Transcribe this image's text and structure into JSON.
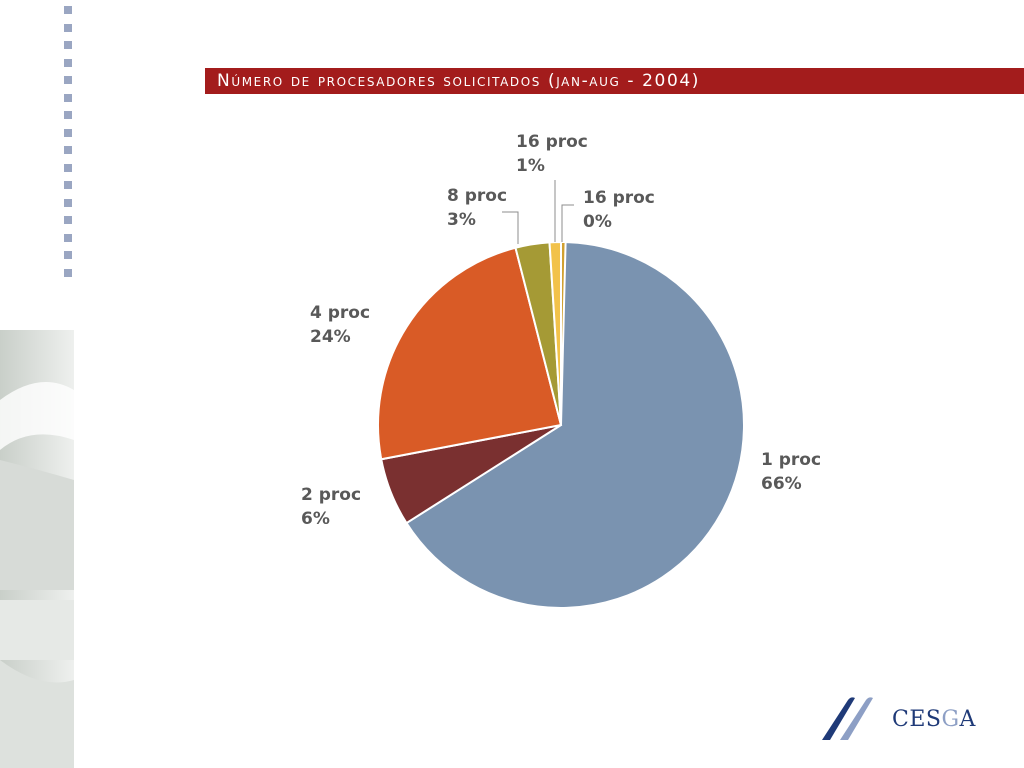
{
  "slide": {
    "title": "Número de procesadores solicitados (jan-aug - 2004)"
  },
  "logo": {
    "text_pre": "CES",
    "text_g": "G",
    "text_post": "A"
  },
  "colors": {
    "title_bar": "#a31c1c",
    "accent_dots": "#9aa6c2",
    "label_text": "#595959",
    "logo_blue": "#1f3a78"
  },
  "chart_data": {
    "type": "pie",
    "title": "Número de procesadores solicitados (jan-aug - 2004)",
    "start_angle": "12 o'clock",
    "direction": "clockwise",
    "slices": [
      {
        "name": "1 proc",
        "label": "66%",
        "value": 66,
        "color": "#7a93b0"
      },
      {
        "name": "2 proc",
        "label": "6%",
        "value": 6,
        "color": "#7a3030"
      },
      {
        "name": "4 proc",
        "label": "24%",
        "value": 24,
        "color": "#d95b26"
      },
      {
        "name": "8 proc",
        "label": "3%",
        "value": 3,
        "color": "#a59a35"
      },
      {
        "name": "16 proc",
        "label": "1%",
        "value": 1,
        "color": "#f2c24a"
      },
      {
        "name": "16 proc",
        "label": "0%",
        "value": 0,
        "color": "#d0a030"
      }
    ]
  }
}
